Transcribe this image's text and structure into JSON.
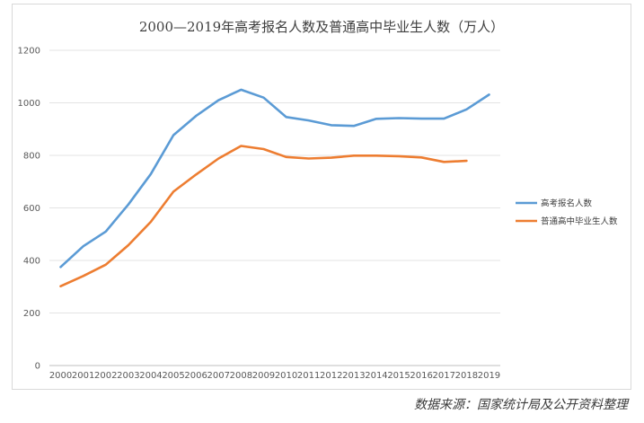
{
  "chart_data": {
    "type": "line",
    "title": "2000—2019年高考报名人数及普通高中毕业生人数（万人）",
    "categories": [
      "2000",
      "2001",
      "2002",
      "2003",
      "2004",
      "2005",
      "2006",
      "2007",
      "2008",
      "2009",
      "2010",
      "2011",
      "2012",
      "2013",
      "2014",
      "2015",
      "2016",
      "2017",
      "2018",
      "2019"
    ],
    "ylim": [
      0,
      1200
    ],
    "yticks": [
      0,
      200,
      400,
      600,
      800,
      1000,
      1200
    ],
    "grid": true,
    "legend_position": "right",
    "series": [
      {
        "name": "高考报名人数",
        "color": "#5b9bd5",
        "values": [
          375,
          454,
          510,
          613,
          729,
          877,
          950,
          1010,
          1050,
          1020,
          946,
          933,
          915,
          912,
          939,
          942,
          940,
          940,
          975,
          1031
        ]
      },
      {
        "name": "普通高中毕业生人数",
        "color": "#ed7d31",
        "values": [
          302,
          341,
          384,
          458,
          547,
          662,
          727,
          788,
          836,
          824,
          794,
          788,
          791,
          799,
          799,
          797,
          792,
          775,
          779,
          null
        ]
      }
    ]
  },
  "source_note": "数据来源：国家统计局及公开资料整理"
}
